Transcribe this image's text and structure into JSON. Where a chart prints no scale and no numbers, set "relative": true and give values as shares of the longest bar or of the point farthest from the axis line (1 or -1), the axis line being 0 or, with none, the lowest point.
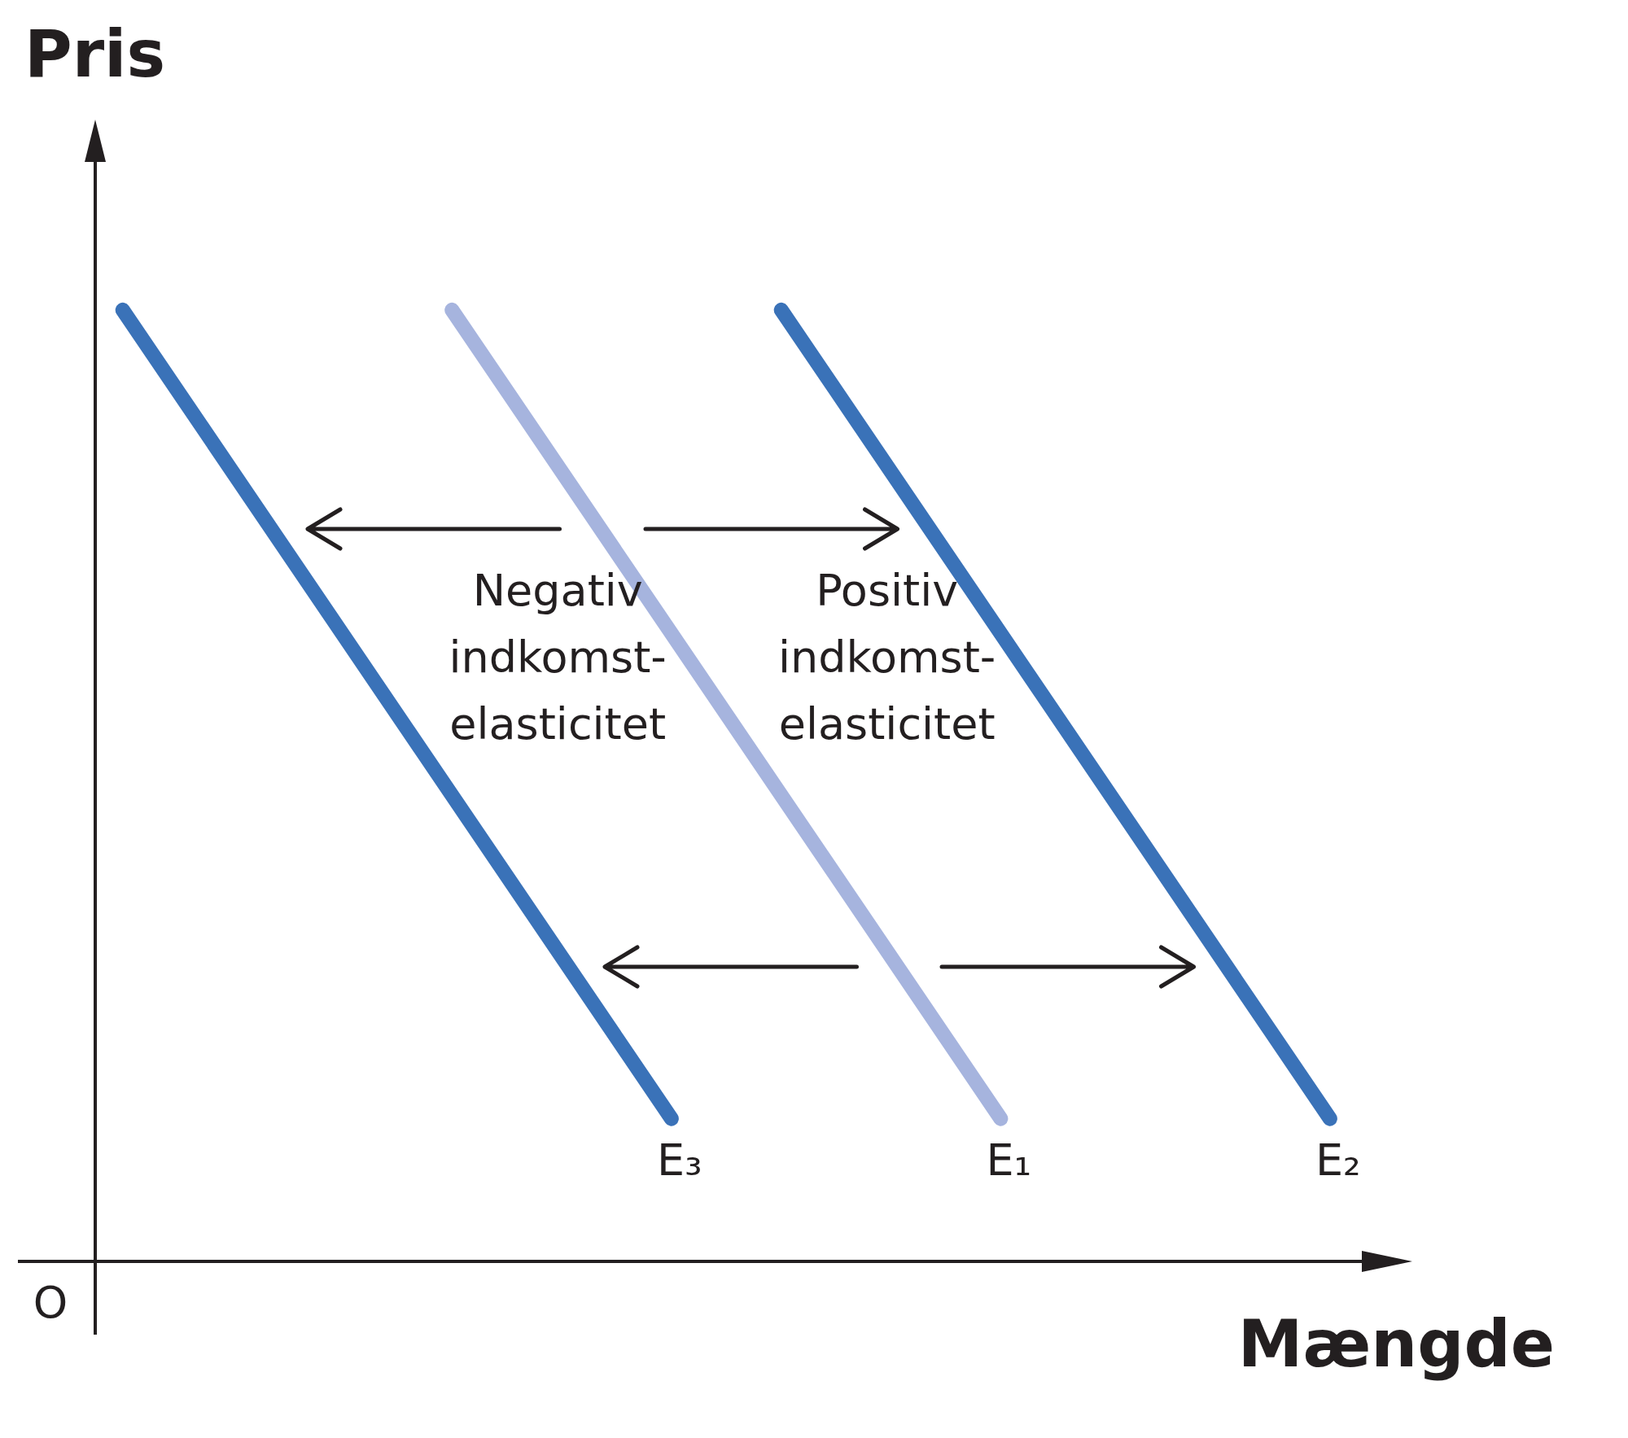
{
  "chart_data": {
    "type": "line",
    "ylabel": "Pris",
    "xlabel": "Mængde",
    "relative": true,
    "marker": "none",
    "categories": [
      null,
      null,
      null,
      null,
      null,
      null,
      null,
      null,
      null,
      null,
      null,
      null,
      null,
      null,
      null,
      null,
      null,
      null,
      null,
      null,
      null,
      null,
      null,
      null,
      null,
      null,
      null,
      null,
      null,
      null,
      null,
      null,
      null,
      null,
      null,
      null,
      null,
      null,
      null,
      null,
      null,
      null,
      null,
      null,
      null,
      null,
      null,
      null,
      null
    ],
    "series": [
      {
        "name": "E₃",
        "color": "#3a72b8",
        "values": [
          null,
          1,
          null,
          null,
          null,
          null,
          null,
          null,
          null,
          null,
          null,
          null,
          null,
          null,
          null,
          null,
          null,
          null,
          null,
          null,
          null,
          0.15,
          null,
          null,
          null,
          null,
          null,
          null,
          null,
          null,
          null,
          null,
          null,
          null,
          null,
          null,
          null,
          null,
          null,
          null,
          null,
          null,
          null,
          null,
          null,
          null,
          null,
          null,
          null
        ]
      },
      {
        "name": "E₁",
        "color": "#a6b4de",
        "values": [
          null,
          null,
          null,
          null,
          null,
          null,
          null,
          null,
          null,
          null,
          null,
          null,
          null,
          1,
          null,
          null,
          null,
          null,
          null,
          null,
          null,
          null,
          null,
          null,
          null,
          null,
          null,
          null,
          null,
          null,
          null,
          null,
          null,
          0.15,
          null,
          null,
          null,
          null,
          null,
          null,
          null,
          null,
          null,
          null,
          null,
          null,
          null,
          null,
          null
        ]
      },
      {
        "name": "E₂",
        "color": "#3a72b8",
        "values": [
          null,
          null,
          null,
          null,
          null,
          null,
          null,
          null,
          null,
          null,
          null,
          null,
          null,
          null,
          null,
          null,
          null,
          null,
          null,
          null,
          null,
          null,
          null,
          null,
          null,
          1,
          null,
          null,
          null,
          null,
          null,
          null,
          null,
          null,
          null,
          null,
          null,
          null,
          null,
          null,
          null,
          null,
          null,
          null,
          null,
          0.15,
          null,
          null,
          null
        ]
      }
    ],
    "annotations": [
      "Negativ indkomst-elasticitet",
      "Positiv indkomst-elasticitet",
      "O"
    ]
  }
}
